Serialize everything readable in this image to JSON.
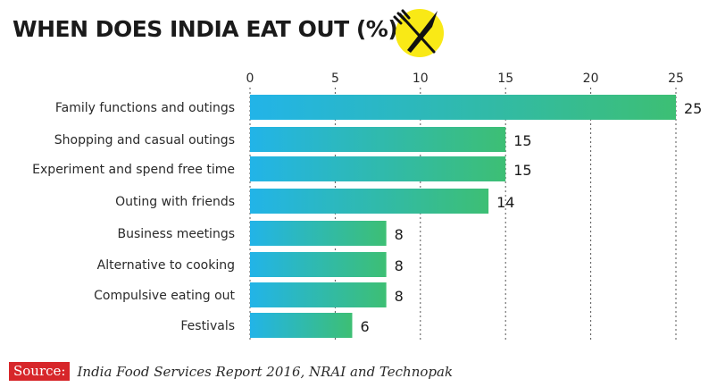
{
  "chart_data": {
    "type": "bar",
    "orientation": "horizontal",
    "title": "WHEN DOES INDIA EAT OUT (%)",
    "categories": [
      "Family functions and outings",
      "Shopping and casual outings",
      "Experiment and spend free time",
      "Outing with friends",
      "Business meetings",
      "Alternative to cooking",
      "Compulsive eating out",
      "Festivals"
    ],
    "values": [
      25,
      15,
      15,
      14,
      8,
      8,
      8,
      6
    ],
    "xlim": [
      0,
      25
    ],
    "xticks": [
      0,
      5,
      10,
      15,
      20,
      25
    ],
    "axis_position": "top",
    "grid": "dotted-vertical",
    "xlabel": "",
    "ylabel": ""
  },
  "colors": {
    "bar_start": "#22b4e8",
    "bar_end": "#3dbf74",
    "grid": "#555555",
    "emblem_circle": "#f9e916",
    "source_tag": "#d7262a"
  },
  "emblem": {
    "icon": "fork-knife-icon"
  },
  "source": {
    "label": "Source:",
    "text": "India Food Services Report 2016, NRAI and Technopak"
  }
}
